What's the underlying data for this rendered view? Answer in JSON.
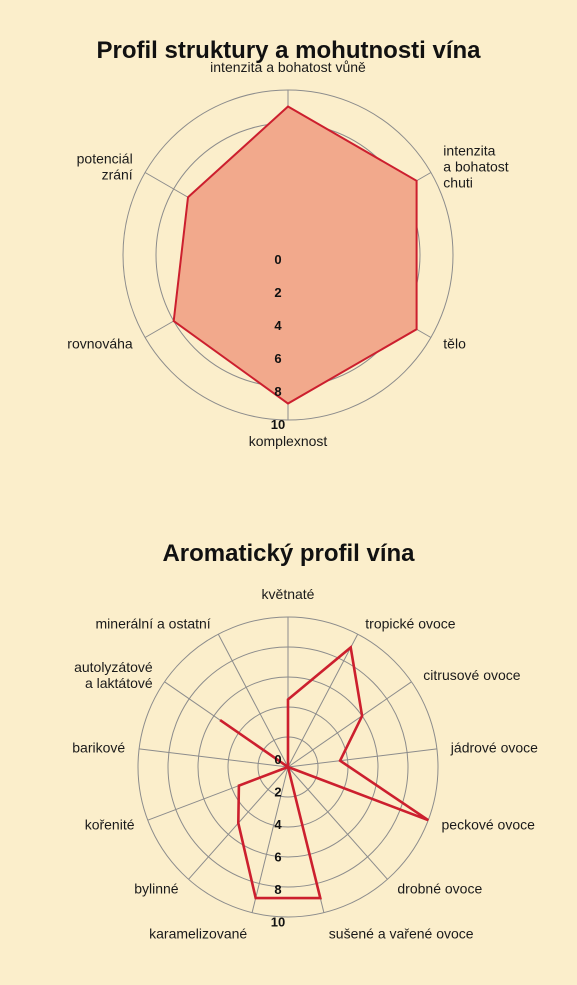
{
  "chart_data": [
    {
      "type": "radar",
      "title": "Profil struktury a mohutnosti vína",
      "rmax": 10,
      "ticks": [
        "0",
        "2",
        "4",
        "6",
        "8",
        "10"
      ],
      "axes": [
        {
          "label": [
            "intenzita a bohatost vůně"
          ],
          "value": 9
        },
        {
          "label": [
            "intenzita",
            "a bohatost",
            "chuti"
          ],
          "value": 9
        },
        {
          "label": [
            "tělo"
          ],
          "value": 9
        },
        {
          "label": [
            "komplexnost"
          ],
          "value": 9
        },
        {
          "label": [
            "rovnováha"
          ],
          "value": 8
        },
        {
          "label": [
            "potenciál",
            "zrání"
          ],
          "value": 7
        }
      ],
      "fill_color": "#f2a98c",
      "line_color": "#cc1f2e",
      "grid": true
    },
    {
      "type": "radar",
      "title": "Aromatický profil vína",
      "rmax": 10,
      "ticks": [
        "0",
        "2",
        "4",
        "6",
        "8",
        "10"
      ],
      "axes": [
        {
          "label": [
            "květnaté"
          ],
          "value": 4.5
        },
        {
          "label": [
            "tropické ovoce"
          ],
          "value": 9
        },
        {
          "label": [
            "citrusové ovoce"
          ],
          "value": 6
        },
        {
          "label": [
            "jádrové ovoce"
          ],
          "value": 3.5
        },
        {
          "label": [
            "peckové ovoce"
          ],
          "value": 10
        },
        {
          "label": [
            "drobné ovoce"
          ],
          "value": 0
        },
        {
          "label": [
            "sušené a vařené ovoce"
          ],
          "value": 9
        },
        {
          "label": [
            "karamelizované"
          ],
          "value": 9
        },
        {
          "label": [
            "bylinné"
          ],
          "value": 5
        },
        {
          "label": [
            "kořenité"
          ],
          "value": 3.5
        },
        {
          "label": [
            "barikové"
          ],
          "value": 0
        },
        {
          "label": [
            "autolyzátové",
            "a laktátové"
          ],
          "value": 5.5
        },
        {
          "label": [
            "minerální a ostatní"
          ],
          "value": 0
        }
      ],
      "line_color": "#cc1f2e",
      "grid": true
    }
  ]
}
